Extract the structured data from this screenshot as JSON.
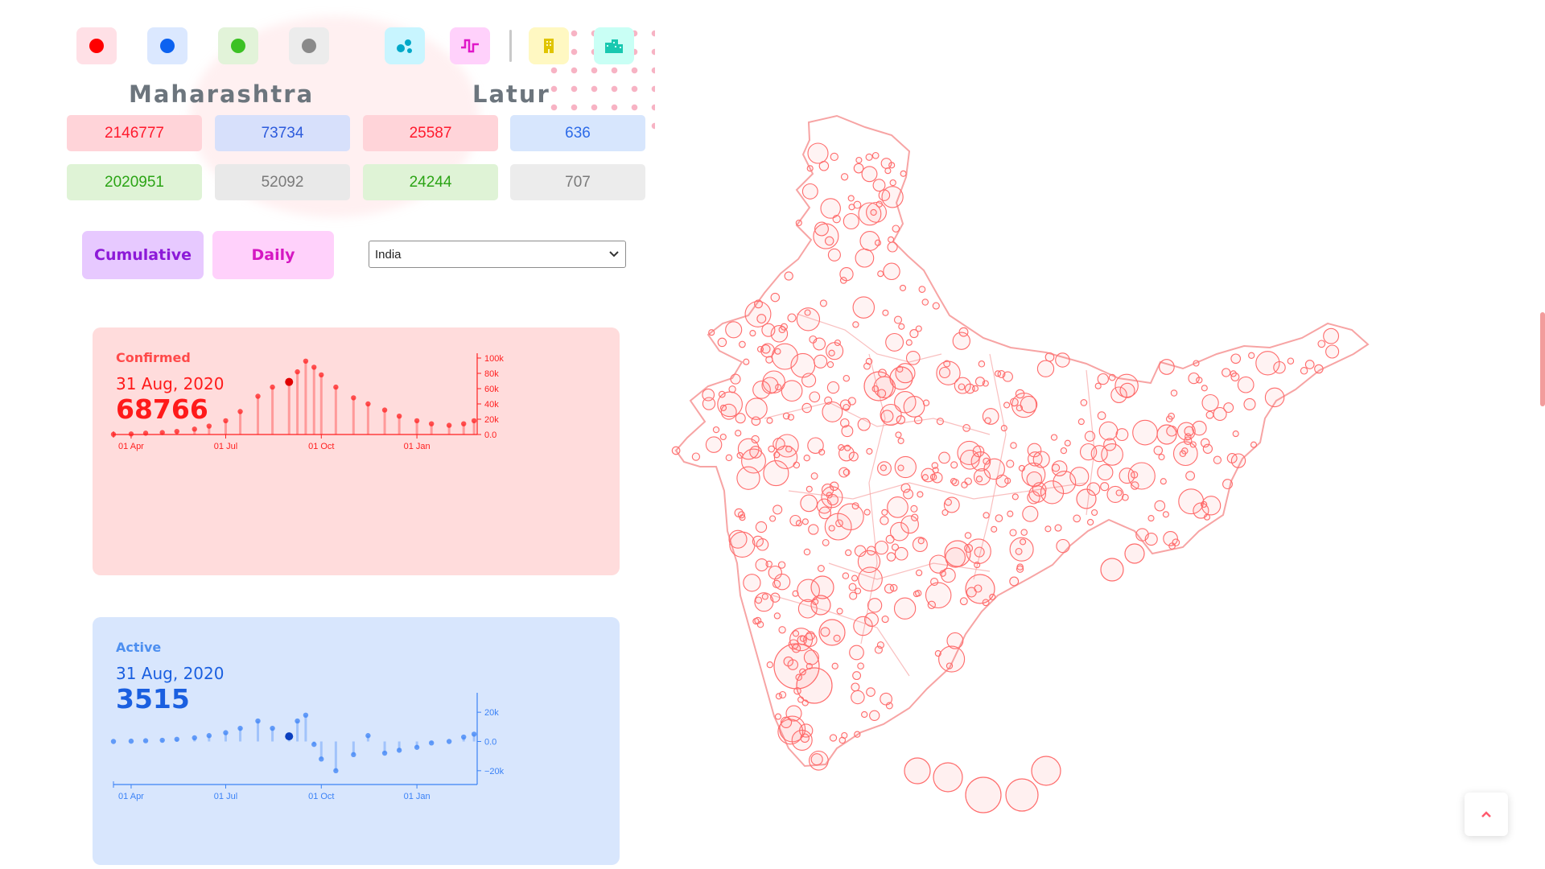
{
  "toggles": {
    "confirmed": {
      "icon": "red-dot-icon",
      "bg": "#ffe0e6",
      "color": "#ff0000"
    },
    "active": {
      "icon": "blue-dot-icon",
      "bg": "#dbe8ff",
      "color": "#0c62f0"
    },
    "recovered": {
      "icon": "green-dot-icon",
      "bg": "#e2f3d9",
      "color": "#3cc124"
    },
    "deceased": {
      "icon": "grey-dot-icon",
      "bg": "#ececec",
      "color": "#8a8a8a"
    },
    "bubble": {
      "icon": "bubble-chart-icon",
      "bg": "#c8f5ff",
      "color": "#00a8c8"
    },
    "spike": {
      "icon": "spike-chart-icon",
      "bg": "#ffd1fb",
      "color": "#e018c8"
    },
    "district": {
      "icon": "building-icon",
      "bg": "#fff8c2",
      "color": "#d8b800"
    },
    "state": {
      "icon": "city-icon",
      "bg": "#c9fff5",
      "color": "#18c8b0"
    }
  },
  "regions": {
    "state": "Maharashtra",
    "district": "Latur"
  },
  "stats": {
    "state_confirmed": "2146777",
    "state_active": "73734",
    "state_recovered": "2020951",
    "state_deceased": "52092",
    "district_confirmed": "25587",
    "district_active": "636",
    "district_recovered": "24244",
    "district_deceased": "707"
  },
  "buttons": {
    "cumulative": "Cumulative",
    "daily": "Daily"
  },
  "select": {
    "value": "India"
  },
  "charts": {
    "confirmed": {
      "label": "Confirmed",
      "date": "31 Aug, 2020",
      "value": "68766"
    },
    "active": {
      "label": "Active",
      "date": "31 Aug, 2020",
      "value": "3515"
    }
  },
  "chart_data": [
    {
      "type": "scatter",
      "title": "Confirmed",
      "x_ticks": [
        "01 Apr",
        "01 Jul",
        "01 Oct",
        "01 Jan"
      ],
      "y_ticks": [
        "0.0",
        "20k",
        "40k",
        "60k",
        "80k",
        "100k"
      ],
      "ylim": [
        0,
        100000
      ],
      "color": "#ff2020",
      "highlight": {
        "x": "31 Aug, 2020",
        "y": 68766
      },
      "points": [
        {
          "x": "2020-03-15",
          "y": 200
        },
        {
          "x": "2020-04-01",
          "y": 700
        },
        {
          "x": "2020-04-15",
          "y": 1700
        },
        {
          "x": "2020-05-01",
          "y": 2500
        },
        {
          "x": "2020-05-15",
          "y": 4000
        },
        {
          "x": "2020-06-01",
          "y": 7000
        },
        {
          "x": "2020-06-15",
          "y": 11000
        },
        {
          "x": "2020-07-01",
          "y": 18000
        },
        {
          "x": "2020-07-15",
          "y": 30000
        },
        {
          "x": "2020-08-01",
          "y": 50000
        },
        {
          "x": "2020-08-15",
          "y": 62000
        },
        {
          "x": "2020-08-31",
          "y": 68766
        },
        {
          "x": "2020-09-08",
          "y": 82000
        },
        {
          "x": "2020-09-16",
          "y": 96000
        },
        {
          "x": "2020-09-24",
          "y": 88000
        },
        {
          "x": "2020-10-01",
          "y": 78000
        },
        {
          "x": "2020-10-15",
          "y": 62000
        },
        {
          "x": "2020-11-01",
          "y": 48000
        },
        {
          "x": "2020-11-15",
          "y": 40000
        },
        {
          "x": "2020-12-01",
          "y": 32000
        },
        {
          "x": "2020-12-15",
          "y": 24000
        },
        {
          "x": "2021-01-01",
          "y": 18000
        },
        {
          "x": "2021-01-15",
          "y": 14000
        },
        {
          "x": "2021-02-01",
          "y": 12000
        },
        {
          "x": "2021-02-15",
          "y": 14000
        },
        {
          "x": "2021-02-25",
          "y": 18000
        }
      ]
    },
    {
      "type": "scatter",
      "title": "Active",
      "x_ticks": [
        "01 Apr",
        "01 Jul",
        "01 Oct",
        "01 Jan"
      ],
      "y_ticks": [
        "20k",
        "0.0",
        "−20k"
      ],
      "ylim": [
        -30000,
        30000
      ],
      "color": "#3b82f6",
      "highlight": {
        "x": "31 Aug, 2020",
        "y": 3515
      },
      "points": [
        {
          "x": "2020-03-15",
          "y": 0
        },
        {
          "x": "2020-04-01",
          "y": 200
        },
        {
          "x": "2020-04-15",
          "y": 500
        },
        {
          "x": "2020-05-01",
          "y": 800
        },
        {
          "x": "2020-05-15",
          "y": 1500
        },
        {
          "x": "2020-06-01",
          "y": 2500
        },
        {
          "x": "2020-06-15",
          "y": 4000
        },
        {
          "x": "2020-07-01",
          "y": 6000
        },
        {
          "x": "2020-07-15",
          "y": 9000
        },
        {
          "x": "2020-08-01",
          "y": 14000
        },
        {
          "x": "2020-08-15",
          "y": 9000
        },
        {
          "x": "2020-08-31",
          "y": 3515
        },
        {
          "x": "2020-09-08",
          "y": 14000
        },
        {
          "x": "2020-09-16",
          "y": 18000
        },
        {
          "x": "2020-09-24",
          "y": -2000
        },
        {
          "x": "2020-10-01",
          "y": -12000
        },
        {
          "x": "2020-10-15",
          "y": -20000
        },
        {
          "x": "2020-11-01",
          "y": -9000
        },
        {
          "x": "2020-11-15",
          "y": 4000
        },
        {
          "x": "2020-12-01",
          "y": -8000
        },
        {
          "x": "2020-12-15",
          "y": -6000
        },
        {
          "x": "2021-01-01",
          "y": -4000
        },
        {
          "x": "2021-01-15",
          "y": -1000
        },
        {
          "x": "2021-02-01",
          "y": 0
        },
        {
          "x": "2021-02-15",
          "y": 3000
        },
        {
          "x": "2021-02-25",
          "y": 5000
        }
      ]
    }
  ],
  "map": {
    "region": "India",
    "bubble_color": "#ff6b6b",
    "outline_color": "#f7a4a4"
  },
  "scroll_top": {
    "icon": "chevron-up-icon"
  }
}
